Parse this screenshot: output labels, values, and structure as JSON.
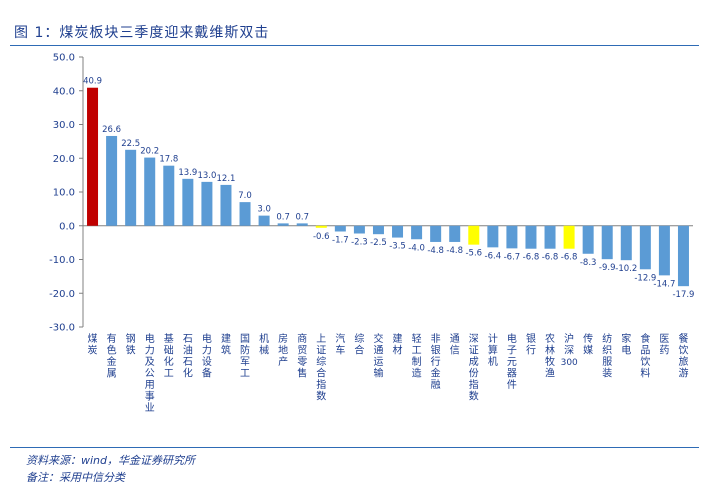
{
  "figure": {
    "title": "图 1：煤炭板块三季度迎来戴维斯双击",
    "source": "资料来源：wind，华金证券研究所",
    "note": "备注：采用中信分类"
  },
  "colors": {
    "bar_default": "#5b9bd5",
    "bar_highlight_red": "#c00000",
    "bar_highlight_yellow": "#ffff00",
    "text": "#1f3f8f",
    "rule": "#2e6bb5"
  },
  "chart_data": {
    "type": "bar",
    "title": "",
    "xlabel": "",
    "ylabel": "",
    "ylim": [
      -30,
      50
    ],
    "yticks": [
      50,
      40,
      30,
      20,
      10,
      0,
      -10,
      -20,
      -30
    ],
    "ytick_labels": [
      "50.0",
      "40.0",
      "30.0",
      "20.0",
      "10.0",
      "0.0",
      "-10.0",
      "-20.0",
      "-30.0"
    ],
    "grid": false,
    "categories": [
      "煤炭",
      "有色金属",
      "钢铁",
      "电力及公用事业",
      "基础化工",
      "石油石化",
      "电力设备",
      "建筑",
      "国防军工",
      "机械",
      "房地产",
      "商贸零售",
      "上证综合指数",
      "汽车",
      "综合",
      "交通运输",
      "建材",
      "轻工制造",
      "非银行金融",
      "通信",
      "深证成份指数",
      "计算机",
      "电子元器件",
      "银行",
      "农林牧渔",
      "沪深300",
      "传媒",
      "纺织服装",
      "家电",
      "食品饮料",
      "医药",
      "餐饮旅游"
    ],
    "values": [
      40.9,
      26.6,
      22.5,
      20.2,
      17.8,
      13.9,
      13.0,
      12.1,
      7.0,
      3.0,
      0.7,
      0.7,
      -0.6,
      -1.7,
      -2.3,
      -2.5,
      -3.5,
      -4.0,
      -4.8,
      -4.8,
      -5.6,
      -6.4,
      -6.7,
      -6.8,
      -6.8,
      -6.8,
      -8.3,
      -9.9,
      -10.2,
      -12.9,
      -14.7,
      -17.9
    ],
    "value_labels": [
      "40.9",
      "26.6",
      "22.5",
      "20.2",
      "17.8",
      "13.9",
      "13.0",
      "12.1",
      "7.0",
      "3.0",
      "0.7",
      "0.7",
      "-0.6",
      "-1.7",
      "-2.3",
      "-2.5",
      "-3.5",
      "-4.0",
      "-4.8",
      "-4.8",
      "-5.6",
      "-6.4",
      "-6.7",
      "-6.8",
      "-6.8",
      "-6.8",
      "-8.3",
      "-9.9",
      "-10.2",
      "-12.9",
      "-14.7",
      "-17.9"
    ],
    "highlight": {
      "煤炭": "red",
      "上证综合指数": "yellow",
      "深证成份指数": "yellow",
      "沪深300": "yellow"
    }
  }
}
